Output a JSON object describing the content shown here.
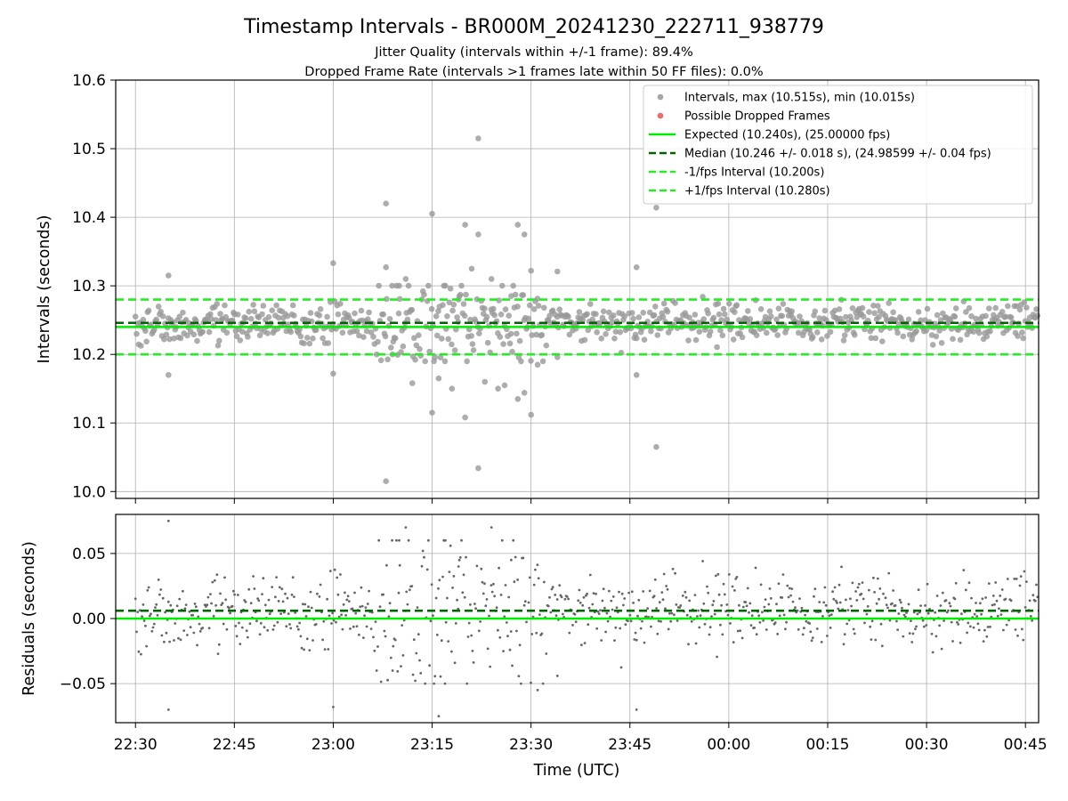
{
  "chart_data": {
    "type": "scatter",
    "title": "Timestamp Intervals - BR000M_20241230_222711_938779",
    "subtitles": [
      "Jitter Quality (intervals within +/-1 frame): 89.4%",
      "Dropped Frame Rate (intervals >1 frames late within 50 FF files): 0.0%"
    ],
    "xlabel": "Time (UTC)",
    "x_ticks": [
      "22:30",
      "22:45",
      "23:00",
      "23:15",
      "23:30",
      "23:45",
      "00:00",
      "00:15",
      "00:30",
      "00:45"
    ],
    "x_range": [
      "22:27",
      "00:47"
    ],
    "grid": true,
    "legend_position": "top-right",
    "top_panel": {
      "ylabel": "Intervals (seconds)",
      "ylim": [
        9.99,
        10.6
      ],
      "y_ticks": [
        "10.0",
        "10.1",
        "10.2",
        "10.3",
        "10.4",
        "10.5",
        "10.6"
      ],
      "scatter_color": "#999999",
      "reference_lines": [
        {
          "label": "Expected (10.240s), (25.00000 fps)",
          "y": 10.24,
          "color": "#00ee00",
          "style": "solid"
        },
        {
          "label": "Median (10.246 +/- 0.018 s), (24.98599 +/- 0.04 fps)",
          "y": 10.246,
          "color": "#006400",
          "style": "dashed"
        },
        {
          "label": "-1/fps Interval (10.200s)",
          "y": 10.2,
          "color": "#22ee22",
          "style": "dashed"
        },
        {
          "label": "+1/fps Interval (10.280s)",
          "y": 10.28,
          "color": "#22ee22",
          "style": "dashed"
        }
      ],
      "legend": [
        {
          "label": "Intervals, max (10.515s), min (10.015s)",
          "kind": "marker",
          "color": "#a6a6a6"
        },
        {
          "label": "Possible Dropped Frames",
          "kind": "marker",
          "color": "#f06a6a"
        },
        {
          "label": "Expected (10.240s), (25.00000 fps)",
          "kind": "solid",
          "color": "#00ee00"
        },
        {
          "label": "Median (10.246 +/- 0.018 s), (24.98599 +/- 0.04 fps)",
          "kind": "dashed",
          "color": "#006400"
        },
        {
          "label": "-1/fps Interval (10.200s)",
          "kind": "dashed",
          "color": "#22ee22"
        },
        {
          "label": "+1/fps Interval (10.280s)",
          "kind": "dashed",
          "color": "#22ee22"
        }
      ],
      "outliers": [
        {
          "t": "22:35",
          "v": 10.315
        },
        {
          "t": "22:35",
          "v": 10.17
        },
        {
          "t": "23:00",
          "v": 10.333
        },
        {
          "t": "23:00",
          "v": 10.172
        },
        {
          "t": "23:08",
          "v": 10.42
        },
        {
          "t": "23:08",
          "v": 10.327
        },
        {
          "t": "23:08",
          "v": 10.015
        },
        {
          "t": "23:09",
          "v": 10.2
        },
        {
          "t": "23:10",
          "v": 10.3
        },
        {
          "t": "23:11",
          "v": 10.31
        },
        {
          "t": "23:12",
          "v": 10.158
        },
        {
          "t": "23:15",
          "v": 10.405
        },
        {
          "t": "23:15",
          "v": 10.115
        },
        {
          "t": "23:16",
          "v": 10.165
        },
        {
          "t": "23:17",
          "v": 10.3
        },
        {
          "t": "23:18",
          "v": 10.15
        },
        {
          "t": "23:19",
          "v": 10.28
        },
        {
          "t": "23:20",
          "v": 10.389
        },
        {
          "t": "23:20",
          "v": 10.108
        },
        {
          "t": "23:21",
          "v": 10.325
        },
        {
          "t": "23:22",
          "v": 10.515
        },
        {
          "t": "23:22",
          "v": 10.034
        },
        {
          "t": "23:22",
          "v": 10.375
        },
        {
          "t": "23:23",
          "v": 10.16
        },
        {
          "t": "23:24",
          "v": 10.31
        },
        {
          "t": "23:25",
          "v": 10.15
        },
        {
          "t": "23:26",
          "v": 10.155
        },
        {
          "t": "23:27",
          "v": 10.285
        },
        {
          "t": "23:28",
          "v": 10.389
        },
        {
          "t": "23:28",
          "v": 10.135
        },
        {
          "t": "23:29",
          "v": 10.144
        },
        {
          "t": "23:29",
          "v": 10.375
        },
        {
          "t": "23:30",
          "v": 10.112
        },
        {
          "t": "23:30",
          "v": 10.322
        },
        {
          "t": "23:31",
          "v": 10.185
        },
        {
          "t": "23:34",
          "v": 10.321
        },
        {
          "t": "23:34",
          "v": 10.196
        },
        {
          "t": "23:46",
          "v": 10.327
        },
        {
          "t": "23:46",
          "v": 10.17
        },
        {
          "t": "23:49",
          "v": 10.414
        },
        {
          "t": "23:49",
          "v": 10.065
        }
      ]
    },
    "bottom_panel": {
      "ylabel": "Residuals (seconds)",
      "ylim": [
        -0.08,
        0.08
      ],
      "y_ticks": [
        "−0.05",
        "0.00",
        "0.05"
      ],
      "scatter_color": "#666666",
      "reference_lines": [
        {
          "y": 0.0,
          "color": "#00ee00",
          "style": "solid"
        },
        {
          "y": 0.006,
          "color": "#006400",
          "style": "dashed"
        }
      ]
    },
    "sampling": {
      "n_points": 820,
      "median": 10.246,
      "std": 0.018
    }
  }
}
